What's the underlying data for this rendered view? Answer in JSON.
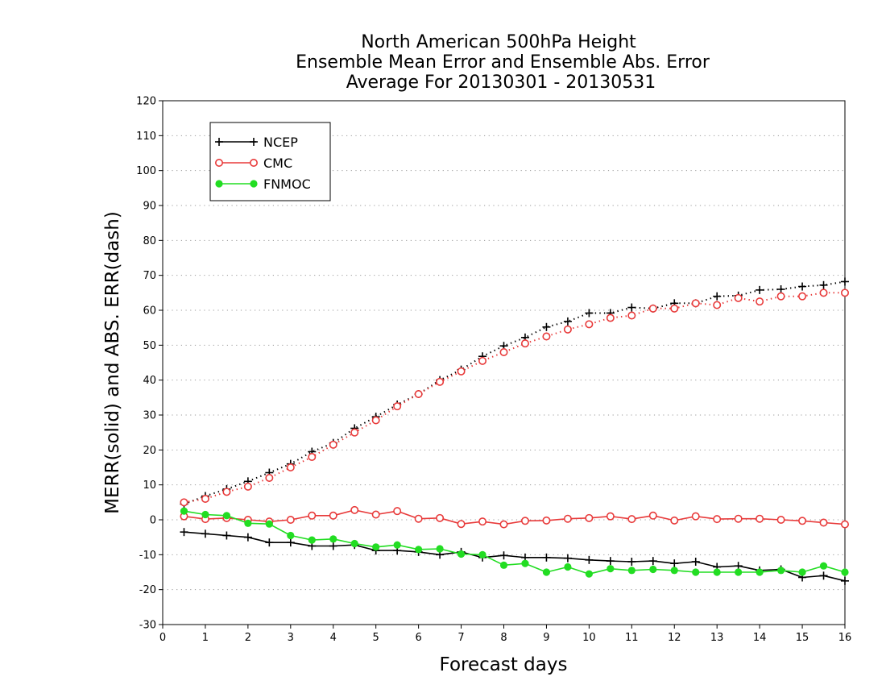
{
  "chart_data": {
    "type": "line",
    "title_lines": [
      "North American 500hPa Height",
      "Ensemble Mean Error and Ensemble Abs. Error",
      "Average For 20130301 - 20130531"
    ],
    "xlabel": "Forecast days",
    "ylabel": "MERR(solid) and ABS. ERR(dash)",
    "xlim": [
      0,
      16
    ],
    "ylim": [
      -30,
      120
    ],
    "xticks": [
      0,
      1,
      2,
      3,
      4,
      5,
      6,
      7,
      8,
      9,
      10,
      11,
      12,
      13,
      14,
      15,
      16
    ],
    "yticks": [
      -30,
      -20,
      -10,
      0,
      10,
      20,
      30,
      40,
      50,
      60,
      70,
      80,
      90,
      100,
      110,
      120
    ],
    "grid": "horizontal dotted",
    "legend_position": "top-left",
    "x": [
      0.5,
      1,
      1.5,
      2,
      2.5,
      3,
      3.5,
      4,
      4.5,
      5,
      5.5,
      6,
      6.5,
      7,
      7.5,
      8,
      8.5,
      9,
      9.5,
      10,
      10.5,
      11,
      11.5,
      12,
      12.5,
      13,
      13.5,
      14,
      14.5,
      15,
      15.5,
      16
    ],
    "series": [
      {
        "name": "NCEP",
        "color": "#000000",
        "marker": "plus",
        "merr": [
          -3.5,
          -4,
          -4.5,
          -5,
          -6.5,
          -6.5,
          -7.5,
          -7.5,
          -7.2,
          -8.8,
          -8.8,
          -9.2,
          -10,
          -9.2,
          -10.8,
          -10.2,
          -10.8,
          -10.8,
          -11,
          -11.5,
          -11.8,
          -12,
          -11.8,
          -12.5,
          -12,
          -13.5,
          -13.2,
          -14.5,
          -14.2,
          -16.5,
          -16,
          -17.5
        ],
        "abs_err": [
          4.5,
          6.8,
          8.8,
          11,
          13.5,
          16,
          19.5,
          22,
          26.2,
          29.5,
          33,
          36,
          40,
          43,
          46.8,
          49.8,
          52.2,
          55.2,
          56.8,
          59.2,
          59.2,
          60.8,
          60.5,
          62,
          62,
          64,
          64.2,
          65.8,
          66,
          66.8,
          67.2,
          68.2
        ]
      },
      {
        "name": "CMC",
        "color": "#e83a3a",
        "marker": "open-circle",
        "merr": [
          1,
          0.2,
          0.5,
          0,
          -0.5,
          0,
          1.2,
          1.2,
          2.8,
          1.5,
          2.5,
          0.3,
          0.5,
          -1.2,
          -0.5,
          -1.3,
          -0.3,
          -0.2,
          0.3,
          0.5,
          1,
          0.2,
          1.2,
          -0.2,
          1,
          0.2,
          0.3,
          0.3,
          0,
          -0.3,
          -0.8,
          -1.3
        ],
        "abs_err": [
          5,
          6,
          8,
          9.5,
          12,
          15,
          18,
          21.5,
          25,
          28.5,
          32.5,
          36,
          39.5,
          42.5,
          45.5,
          48,
          50.5,
          52.5,
          54.5,
          56,
          57.8,
          58.5,
          60.5,
          60.5,
          62,
          61.5,
          63.5,
          62.5,
          64,
          64,
          65,
          65
        ]
      },
      {
        "name": "FNMOC",
        "color": "#22dd22",
        "marker": "filled-circle",
        "merr": [
          2.5,
          1.5,
          1.2,
          -1,
          -1.2,
          -4.5,
          -5.8,
          -5.5,
          -6.8,
          -7.8,
          -7.2,
          -8.5,
          -8.3,
          -9.8,
          -10,
          -13,
          -12.5,
          -15,
          -13.5,
          -15.5,
          -14,
          -14.5,
          -14.2,
          -14.5,
          -15,
          -15,
          -15,
          -15,
          -14.5,
          -15,
          -13.2,
          -15
        ]
      }
    ],
    "legend": {
      "entries": [
        "NCEP",
        "CMC",
        "FNMOC"
      ]
    }
  }
}
